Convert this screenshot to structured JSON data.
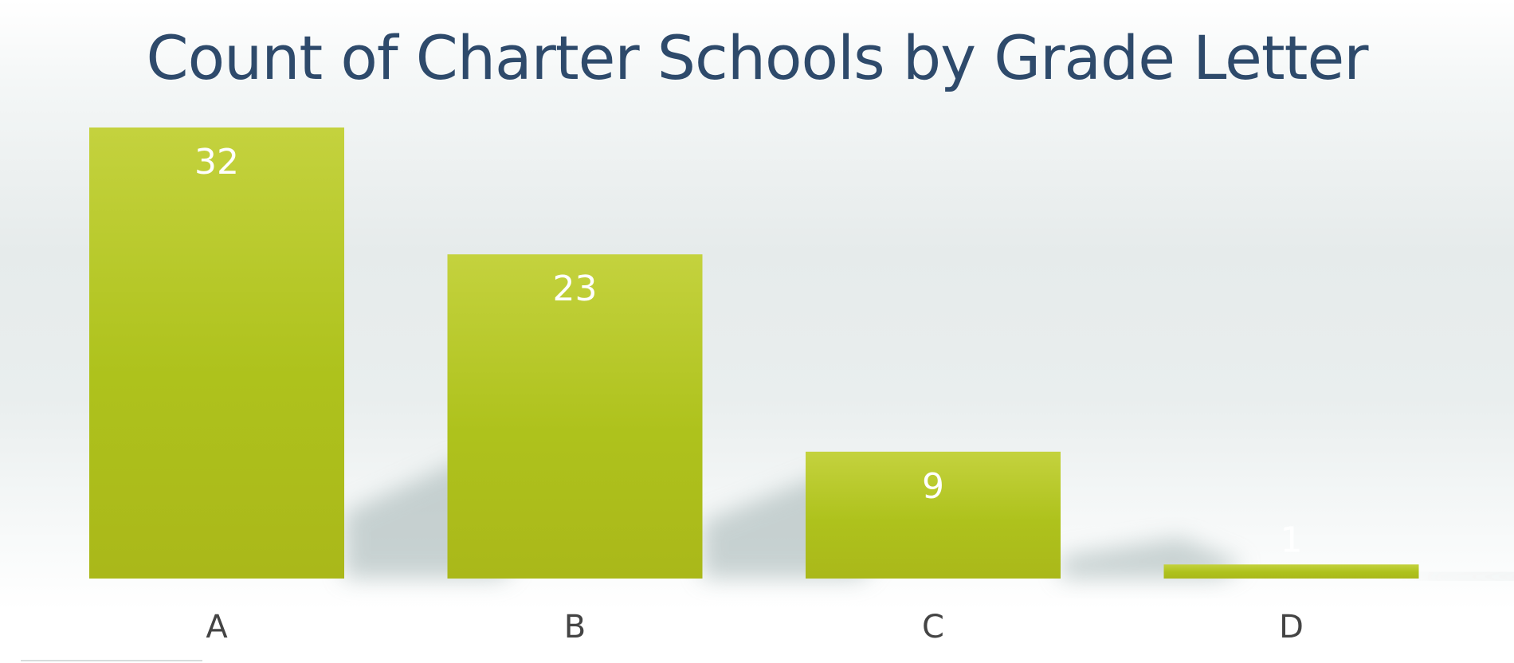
{
  "chart_data": {
    "type": "bar",
    "title": "Count of Charter Schools by Grade Letter",
    "xlabel": "",
    "ylabel": "",
    "categories": [
      "A",
      "B",
      "C",
      "D"
    ],
    "values": [
      32,
      23,
      9,
      1
    ],
    "data_labels": [
      "32",
      "23",
      "9",
      "1"
    ],
    "ylim": [
      0,
      32
    ],
    "grid": false,
    "legend": "none",
    "colors": {
      "bar_top": "#c4d23e",
      "bar_mid": "#aec21c",
      "bar_bottom": "#aab81a",
      "title": "#2e4a6b",
      "data_label": "#ffffff",
      "tick_label": "#444444"
    }
  }
}
